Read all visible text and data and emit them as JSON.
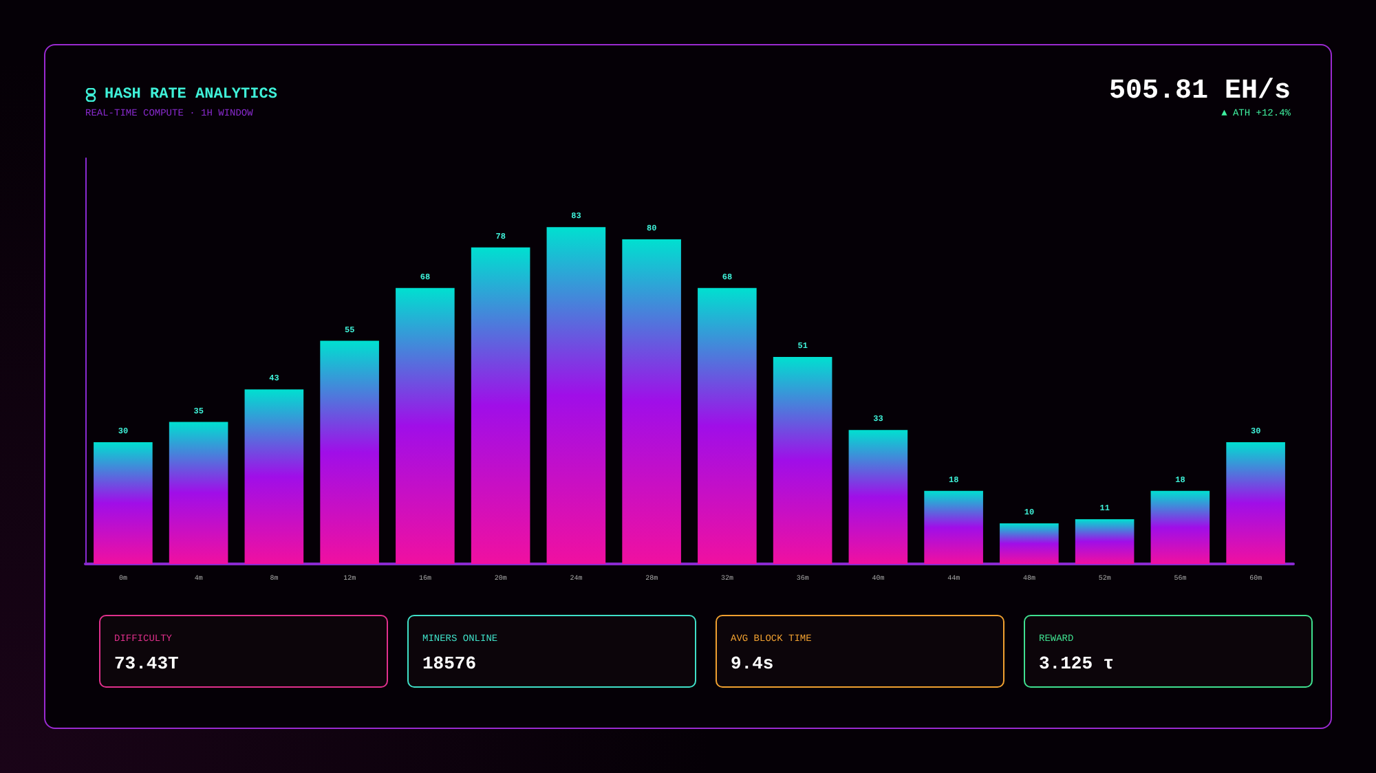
{
  "chart_data": {
    "type": "bar",
    "title": "HASH RATE ANALYTICS",
    "subtitle": "REAL-TIME COMPUTE · 1H WINDOW",
    "categories": [
      "0m",
      "4m",
      "8m",
      "12m",
      "16m",
      "20m",
      "24m",
      "28m",
      "32m",
      "36m",
      "40m",
      "44m",
      "48m",
      "52m",
      "56m",
      "60m"
    ],
    "values": [
      30,
      35,
      43,
      55,
      68,
      78,
      83,
      80,
      68,
      51,
      33,
      18,
      10,
      11,
      18,
      30
    ],
    "color": "#a00ee8",
    "data_labels": true,
    "grid": false,
    "tick_labels": "x",
    "annotations": [
      "505.81 EH/s",
      "▲ ATH +12.4%",
      "DIFFICULTY",
      "73.43T",
      "MINERS ONLINE",
      "18576",
      "AVG BLOCK TIME",
      "9.4s",
      "REWARD",
      "3.125 τ"
    ]
  }
}
